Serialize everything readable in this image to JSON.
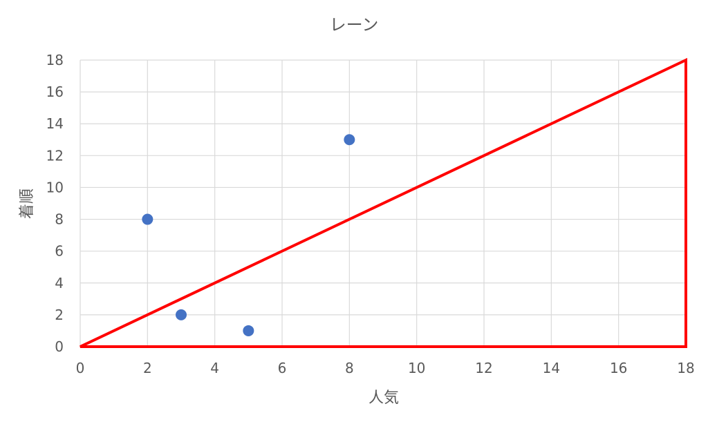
{
  "chart_data": {
    "type": "scatter",
    "title": "レーン",
    "xlabel": "人気",
    "ylabel": "着順",
    "xlim": [
      0,
      18
    ],
    "ylim": [
      0,
      18
    ],
    "x_ticks": [
      0,
      2,
      4,
      6,
      8,
      10,
      12,
      14,
      16,
      18
    ],
    "y_ticks": [
      0,
      2,
      4,
      6,
      8,
      10,
      12,
      14,
      16,
      18
    ],
    "grid": true,
    "legend": "none",
    "series": [
      {
        "points": [
          {
            "x": 2,
            "y": 8
          },
          {
            "x": 3,
            "y": 2
          },
          {
            "x": 5,
            "y": 1
          },
          {
            "x": 8,
            "y": 13
          }
        ],
        "color": "#4472c4"
      }
    ],
    "annotations": [
      {
        "kind": "triangle-outline",
        "vertices": [
          [
            0,
            0
          ],
          [
            18,
            18
          ],
          [
            18,
            0
          ]
        ],
        "color": "#ff0000"
      }
    ]
  }
}
